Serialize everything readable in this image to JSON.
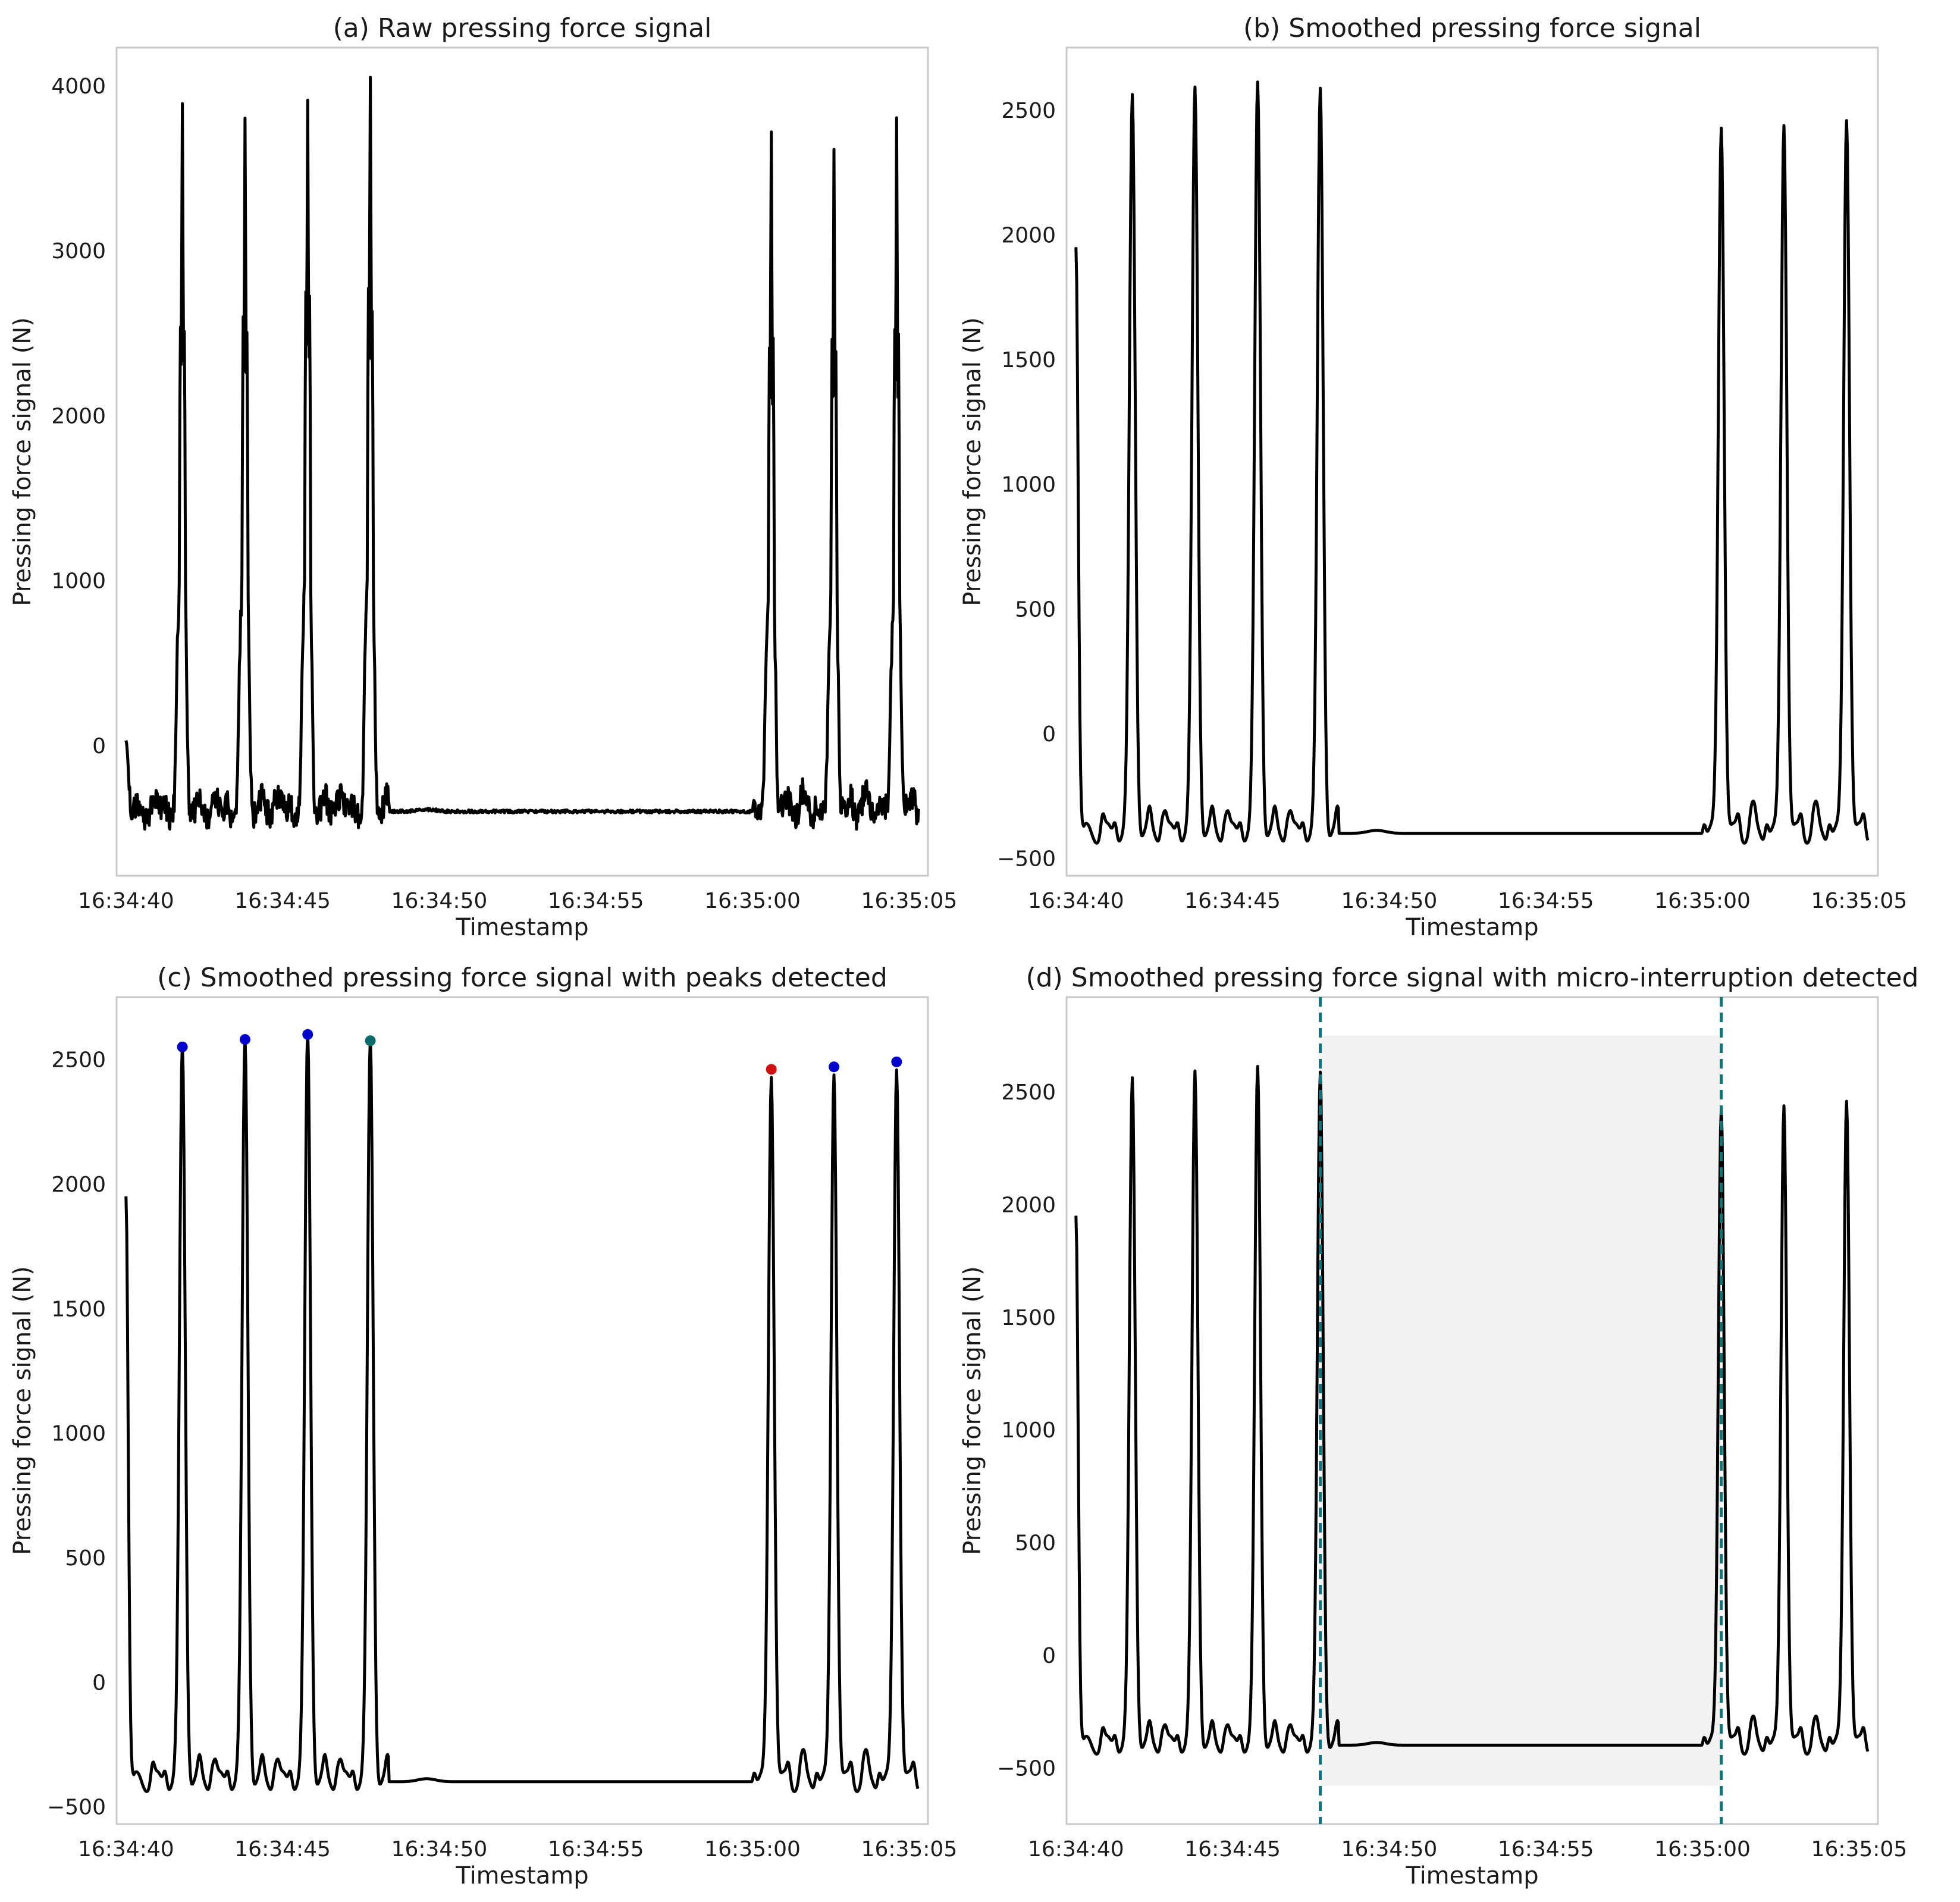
{
  "chart_data": [
    {
      "id": "a",
      "type": "line",
      "title": "(a) Raw pressing force signal",
      "xlabel": "Timestamp",
      "ylabel": "Pressing force signal (N)",
      "xlim": [
        "16:34:39.7",
        "16:35:05.6"
      ],
      "ylim": [
        -790,
        4230
      ],
      "xticks": [
        "16:34:40",
        "16:34:45",
        "16:34:50",
        "16:34:55",
        "16:35:00",
        "16:35:05"
      ],
      "yticks": [
        0,
        1000,
        2000,
        3000,
        4000
      ],
      "grid": false,
      "signal": "raw",
      "peaks": [
        {
          "x": "16:34:41.8",
          "y": 3850
        },
        {
          "x": "16:34:43.8",
          "y": 3840
        },
        {
          "x": "16:34:45.8",
          "y": 3960
        },
        {
          "x": "16:34:47.8",
          "y": 4030
        },
        {
          "x": "16:35:00.6",
          "y": 3710
        },
        {
          "x": "16:35:02.6",
          "y": 3650
        },
        {
          "x": "16:35:04.6",
          "y": 3790
        }
      ],
      "baseline": -400,
      "start_value": 30
    },
    {
      "id": "b",
      "type": "line",
      "title": "(b) Smoothed pressing force signal",
      "xlabel": "Timestamp",
      "ylabel": "Pressing force signal (N)",
      "xlim": [
        "16:34:39.7",
        "16:35:05.6"
      ],
      "ylim": [
        -570,
        2750
      ],
      "xticks": [
        "16:34:40",
        "16:34:45",
        "16:34:50",
        "16:34:55",
        "16:35:00",
        "16:35:05"
      ],
      "yticks": [
        -500,
        0,
        500,
        1000,
        1500,
        2000,
        2500
      ],
      "grid": false,
      "signal": "smoothed",
      "peaks": [
        {
          "x": "16:34:41.8",
          "y": 2550
        },
        {
          "x": "16:34:43.8",
          "y": 2580
        },
        {
          "x": "16:34:45.8",
          "y": 2600
        },
        {
          "x": "16:34:47.8",
          "y": 2575
        },
        {
          "x": "16:35:00.6",
          "y": 2460
        },
        {
          "x": "16:35:02.6",
          "y": 2470
        },
        {
          "x": "16:35:04.6",
          "y": 2490
        }
      ],
      "baseline": -400,
      "start_value": 1950
    },
    {
      "id": "c",
      "type": "line",
      "title": "(c) Smoothed pressing force signal with peaks detected",
      "xlabel": "Timestamp",
      "ylabel": "Pressing force signal (N)",
      "xlim": [
        "16:34:39.7",
        "16:35:05.6"
      ],
      "ylim": [
        -570,
        2750
      ],
      "xticks": [
        "16:34:40",
        "16:34:45",
        "16:34:50",
        "16:34:55",
        "16:35:00",
        "16:35:05"
      ],
      "yticks": [
        -500,
        0,
        500,
        1000,
        1500,
        2000,
        2500
      ],
      "grid": false,
      "signal": "smoothed",
      "peaks": [
        {
          "x": "16:34:41.8",
          "y": 2550,
          "marker": "#0000cc"
        },
        {
          "x": "16:34:43.8",
          "y": 2580,
          "marker": "#0000cc"
        },
        {
          "x": "16:34:45.8",
          "y": 2600,
          "marker": "#0000cc"
        },
        {
          "x": "16:34:47.8",
          "y": 2575,
          "marker": "#0b6b6b"
        },
        {
          "x": "16:35:00.6",
          "y": 2460,
          "marker": "#d01010"
        },
        {
          "x": "16:35:02.6",
          "y": 2470,
          "marker": "#0000cc"
        },
        {
          "x": "16:35:04.6",
          "y": 2490,
          "marker": "#0000cc"
        }
      ],
      "baseline": -400,
      "start_value": 1950
    },
    {
      "id": "d",
      "type": "line",
      "title": "(d) Smoothed pressing force signal with micro-interruption detected",
      "xlabel": "Timestamp",
      "ylabel": "Pressing force signal (N)",
      "xlim": [
        "16:34:39.7",
        "16:35:05.6"
      ],
      "ylim": [
        -750,
        2920
      ],
      "xticks": [
        "16:34:40",
        "16:34:45",
        "16:34:50",
        "16:34:55",
        "16:35:00",
        "16:35:05"
      ],
      "yticks": [
        -500,
        0,
        500,
        1000,
        1500,
        2000,
        2500
      ],
      "grid": false,
      "signal": "smoothed",
      "peaks": [
        {
          "x": "16:34:41.8",
          "y": 2550
        },
        {
          "x": "16:34:43.8",
          "y": 2580
        },
        {
          "x": "16:34:45.8",
          "y": 2600
        },
        {
          "x": "16:34:47.8",
          "y": 2575
        },
        {
          "x": "16:35:00.6",
          "y": 2460
        },
        {
          "x": "16:35:02.6",
          "y": 2470
        },
        {
          "x": "16:35:04.6",
          "y": 2490
        }
      ],
      "baseline": -400,
      "start_value": 1950,
      "interruption": {
        "start": "16:34:47.8",
        "end": "16:35:00.6",
        "y_range": [
          -580,
          2750
        ],
        "fill": "#f2f2f2",
        "line_color": "#007a80"
      }
    }
  ],
  "colors": {
    "signal": "#000000",
    "frame": "#c8c8c8"
  }
}
